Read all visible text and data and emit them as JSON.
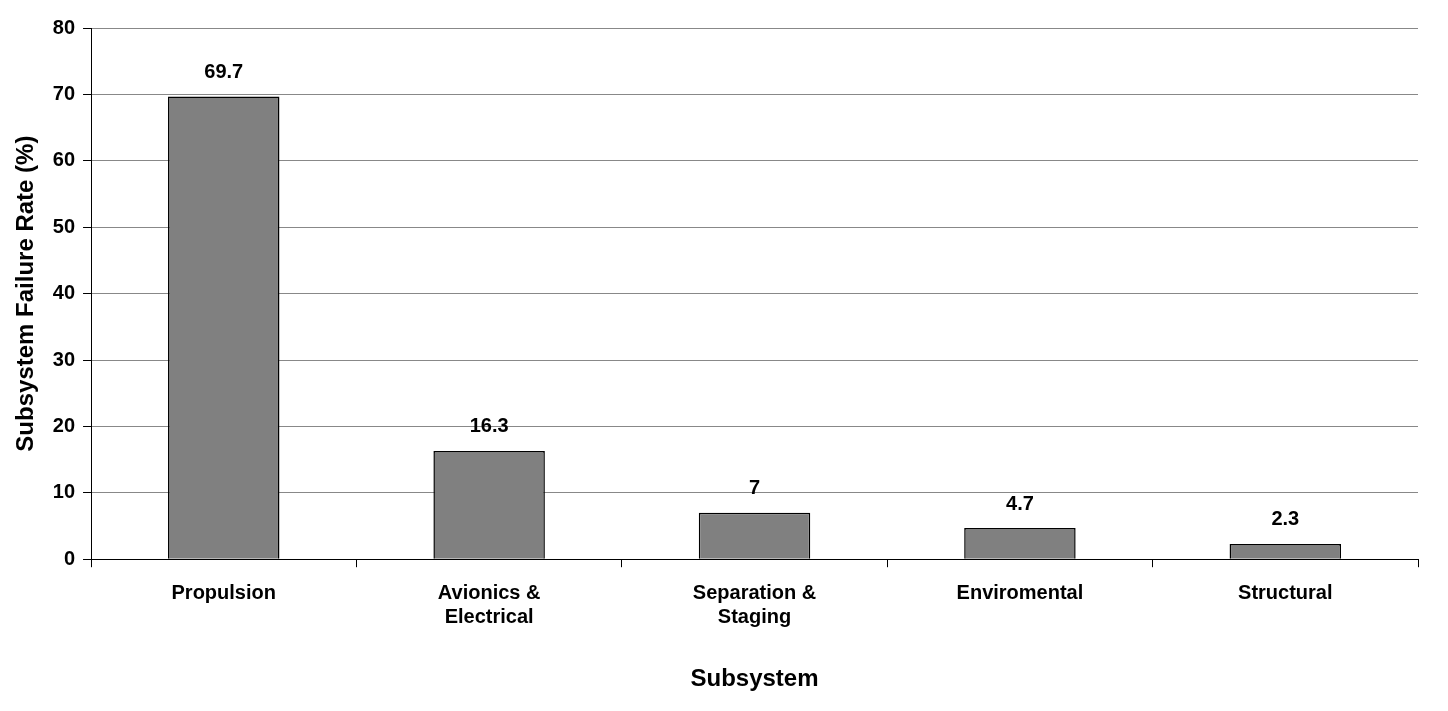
{
  "chart_data": {
    "type": "bar",
    "categories": [
      "Propulsion",
      "Avionics & Electrical",
      "Separation & Staging",
      "Enviromental",
      "Structural"
    ],
    "values": [
      69.7,
      16.3,
      7,
      4.7,
      2.3
    ],
    "color": "#808080",
    "xlabel": "Subsystem",
    "ylabel": "Subsystem Failure Rate (%)",
    "ylim": [
      0,
      80
    ],
    "yticks": [
      0,
      10,
      20,
      30,
      40,
      50,
      60,
      70,
      80
    ],
    "grid": "y",
    "data_labels": true,
    "legend": false
  }
}
